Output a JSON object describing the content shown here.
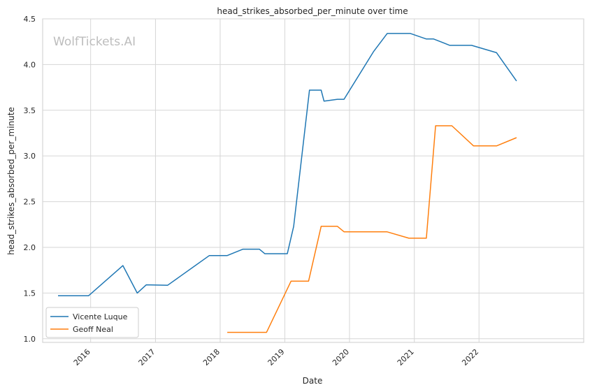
{
  "chart_data": {
    "type": "line",
    "title": "head_strikes_absorbed_per_minute over time",
    "xlabel": "Date",
    "ylabel": "head_strikes_absorbed_per_minute",
    "watermark": "WolfTickets.AI",
    "ylim": [
      0.96,
      4.5
    ],
    "xlim": [
      "2015-04-05",
      "2023-08-15"
    ],
    "yticks": [
      "1.0",
      "1.5",
      "2.0",
      "2.5",
      "3.0",
      "3.5",
      "4.0",
      "4.5"
    ],
    "xticks": [
      "2016",
      "2017",
      "2018",
      "2019",
      "2020",
      "2021",
      "2022"
    ],
    "grid": true,
    "legend_position": "lower-left",
    "series": [
      {
        "name": "Vicente Luque",
        "color": "#1f77b4",
        "points": [
          [
            "2015-07-01",
            1.47
          ],
          [
            "2015-12-20",
            1.47
          ],
          [
            "2016-07-01",
            1.8
          ],
          [
            "2016-09-20",
            1.5
          ],
          [
            "2016-11-10",
            1.59
          ],
          [
            "2017-03-10",
            1.585
          ],
          [
            "2017-11-01",
            1.91
          ],
          [
            "2018-02-10",
            1.91
          ],
          [
            "2018-05-10",
            1.98
          ],
          [
            "2018-08-10",
            1.98
          ],
          [
            "2018-09-10",
            1.93
          ],
          [
            "2019-01-15",
            1.93
          ],
          [
            "2019-02-20",
            2.23
          ],
          [
            "2019-05-20",
            3.72
          ],
          [
            "2019-07-25",
            3.72
          ],
          [
            "2019-08-10",
            3.6
          ],
          [
            "2019-10-25",
            3.62
          ],
          [
            "2019-12-01",
            3.62
          ],
          [
            "2020-05-15",
            4.14
          ],
          [
            "2020-08-01",
            4.34
          ],
          [
            "2020-12-10",
            4.34
          ],
          [
            "2021-03-10",
            4.28
          ],
          [
            "2021-04-20",
            4.28
          ],
          [
            "2021-07-20",
            4.21
          ],
          [
            "2021-11-20",
            4.21
          ],
          [
            "2022-04-10",
            4.13
          ],
          [
            "2022-08-01",
            3.82
          ]
        ]
      },
      {
        "name": "Geoff Neal",
        "color": "#ff7f0e",
        "points": [
          [
            "2018-02-10",
            1.07
          ],
          [
            "2018-09-20",
            1.07
          ],
          [
            "2019-02-05",
            1.63
          ],
          [
            "2019-05-15",
            1.63
          ],
          [
            "2019-07-25",
            2.23
          ],
          [
            "2019-10-25",
            2.23
          ],
          [
            "2019-12-01",
            2.17
          ],
          [
            "2020-07-30",
            2.17
          ],
          [
            "2020-12-01",
            2.1
          ],
          [
            "2021-03-10",
            2.1
          ],
          [
            "2021-05-01",
            3.33
          ],
          [
            "2021-08-01",
            3.33
          ],
          [
            "2021-12-01",
            3.11
          ],
          [
            "2022-04-10",
            3.11
          ],
          [
            "2022-08-01",
            3.2
          ]
        ]
      }
    ]
  }
}
